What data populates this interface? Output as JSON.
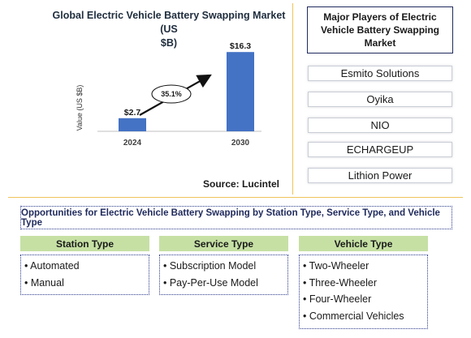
{
  "chart_data": {
    "type": "bar",
    "title": "Global Electric Vehicle Battery Swapping Market (US $B)",
    "title_line1": "Global Electric Vehicle Battery Swapping Market (US",
    "title_line2": "$B)",
    "ylabel": "Value (US $B)",
    "xlabel": "",
    "categories": [
      "2024",
      "2030"
    ],
    "values": [
      2.7,
      16.3
    ],
    "value_labels": [
      "$2.7",
      "$16.3"
    ],
    "ylim": [
      0,
      17
    ],
    "grid": false,
    "annotation": "35.1%",
    "bar_color": "#4472c4"
  },
  "source": "Source: Lucintel",
  "players": {
    "title": "Major Players of Electric Vehicle Battery Swapping Market",
    "items": [
      "Esmito Solutions",
      "Oyika",
      "NIO",
      "ECHARGEUP",
      "Lithion Power"
    ]
  },
  "opportunities": {
    "title": "Opportunities for Electric Vehicle Battery Swapping by Station Type, Service Type, and Vehicle Type",
    "segments": [
      {
        "header": "Station Type",
        "items": [
          "• Automated",
          "• Manual"
        ]
      },
      {
        "header": "Service Type",
        "items": [
          "• Subscription Model",
          "• Pay-Per-Use Model"
        ]
      },
      {
        "header": "Vehicle Type",
        "items": [
          "• Two-Wheeler",
          "• Three-Wheeler",
          "• Four-Wheeler",
          "• Commercial Vehicles"
        ]
      }
    ]
  },
  "colors": {
    "divider": "#f0c35a",
    "header_fill": "#c6e0a4",
    "border": "#2b3a8c",
    "arrow": "#111111"
  }
}
